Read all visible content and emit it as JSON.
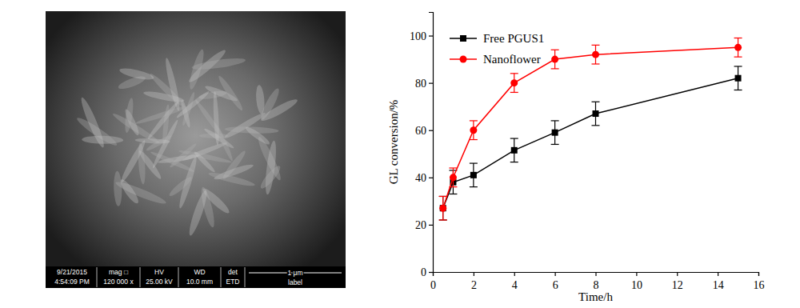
{
  "chart_data": {
    "type": "line",
    "x_label": "Time/h",
    "y_label": "GL conversion/%",
    "x": [
      0.5,
      1,
      2,
      4,
      6,
      8,
      15
    ],
    "series": [
      {
        "name": "Free PGUS1",
        "color": "#000000",
        "marker": "square",
        "line_style": "solid",
        "values": [
          27,
          38,
          41,
          51.5,
          59,
          67,
          82
        ],
        "errors": [
          5,
          5,
          5,
          5,
          5,
          5,
          5
        ]
      },
      {
        "name": "Nanoflower",
        "color": "#ff0000",
        "marker": "circle",
        "line_style": "solid",
        "values": [
          27,
          40,
          60,
          80,
          90,
          92,
          95
        ],
        "errors": [
          5,
          4,
          4,
          4,
          4,
          4,
          4
        ]
      }
    ],
    "xlim": [
      0,
      16
    ],
    "xticks": [
      0,
      2,
      4,
      6,
      8,
      10,
      12,
      14,
      16
    ],
    "ylim": [
      0,
      110
    ],
    "yticks": [
      0,
      20,
      40,
      60,
      80,
      100
    ],
    "grid": false,
    "legend": "upper left"
  },
  "sem_panel": {
    "info_bar": [
      [
        "9/21/2015",
        "4:54:09 PM"
      ],
      [
        "mag □",
        "120 000 x"
      ],
      [
        "HV",
        "25.00 kV"
      ],
      [
        "WD",
        "10.0 mm"
      ],
      [
        "det",
        "ETD"
      ]
    ],
    "scale_bar": "1 μm",
    "label": "label"
  }
}
